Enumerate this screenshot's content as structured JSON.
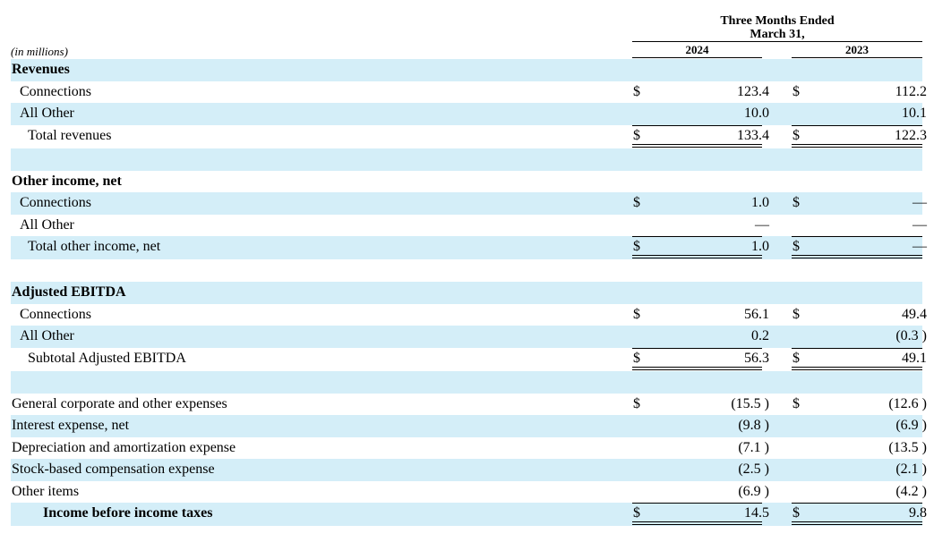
{
  "header": {
    "period_line1": "Three Months Ended",
    "period_line2": "March 31,",
    "year1": "2024",
    "year2": "2023",
    "units": "(in millions)"
  },
  "rows": [
    {
      "label": "Revenues",
      "bold": true
    },
    {
      "label": "Connections",
      "d1": "$",
      "v1": "123.4",
      "d2": "$",
      "v2": "112.2"
    },
    {
      "label": "All Other",
      "v1": "10.0",
      "v2": "10.1"
    },
    {
      "label": "Total revenues",
      "d1": "$",
      "v1": "133.4",
      "d2": "$",
      "v2": "122.3"
    },
    {
      "label": ""
    },
    {
      "label": "Other income, net",
      "bold": true
    },
    {
      "label": "Connections",
      "d1": "$",
      "v1": "1.0",
      "d2": "$",
      "v2": "—"
    },
    {
      "label": "All Other",
      "v1": "—",
      "v2": "—"
    },
    {
      "label": "Total other income, net",
      "d1": "$",
      "v1": "1.0",
      "d2": "$",
      "v2": "—"
    },
    {
      "label": ""
    },
    {
      "label": "Adjusted EBITDA",
      "bold": true
    },
    {
      "label": "Connections",
      "d1": "$",
      "v1": "56.1",
      "d2": "$",
      "v2": "49.4"
    },
    {
      "label": "All Other",
      "v1": "0.2",
      "v2": "(0.3 )"
    },
    {
      "label": "Subtotal Adjusted EBITDA",
      "d1": "$",
      "v1": "56.3",
      "d2": "$",
      "v2": "49.1"
    },
    {
      "label": ""
    },
    {
      "label": "General corporate and other expenses",
      "d1": "$",
      "v1": "(15.5 )",
      "d2": "$",
      "v2": "(12.6 )"
    },
    {
      "label": "Interest expense, net",
      "v1": "(9.8 )",
      "v2": "(6.9 )"
    },
    {
      "label": "Depreciation and amortization expense",
      "v1": "(7.1 )",
      "v2": "(13.5 )"
    },
    {
      "label": "Stock-based compensation expense",
      "v1": "(2.5 )",
      "v2": "(2.1 )"
    },
    {
      "label": "Other items",
      "v1": "(6.9 )",
      "v2": "(4.2 )"
    },
    {
      "label": "Income before income taxes",
      "bold": true,
      "d1": "$",
      "v1": "14.5",
      "d2": "$",
      "v2": "9.8"
    }
  ]
}
